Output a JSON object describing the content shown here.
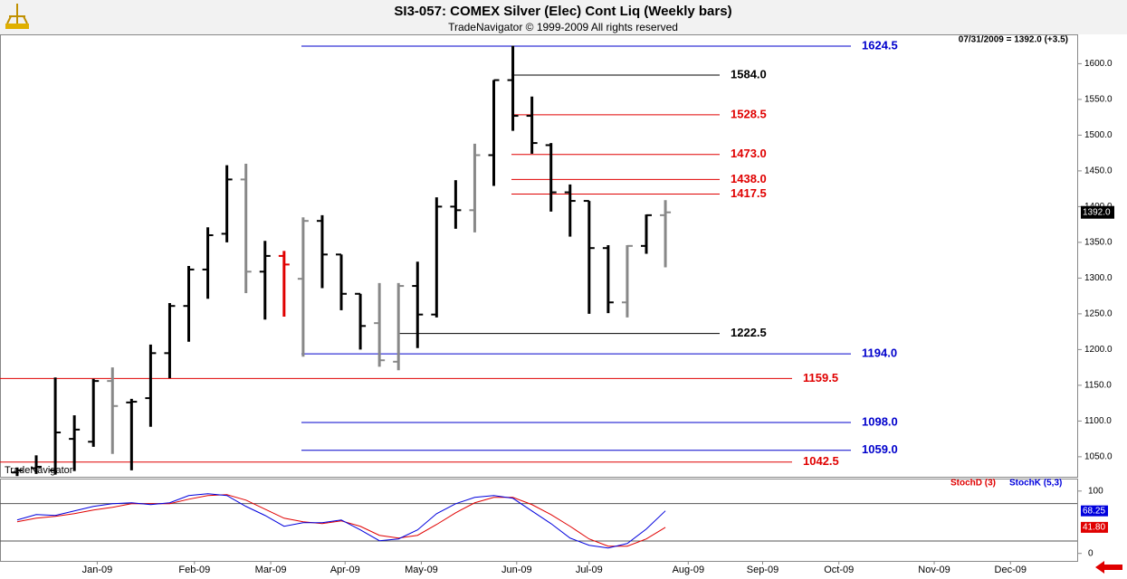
{
  "chart_data": [
    {
      "type": "ohlc",
      "title": "SI3-057:  COMEX Silver (Elec) Cont Liq  (Weekly bars)",
      "subtitle": "TradeNavigator © 1999-2009 All rights reserved",
      "watermark": "TradeNavigator",
      "info": "07/31/2009 = 1392.0 (+3.5)",
      "x": [
        0,
        1,
        2,
        3,
        4,
        5,
        6,
        7,
        8,
        9,
        10,
        11,
        12,
        13,
        14,
        15,
        16,
        17,
        18,
        19,
        20,
        21,
        22,
        23,
        24,
        25,
        26,
        27,
        28,
        29,
        30,
        31,
        32,
        33,
        34
      ],
      "xlim": [
        -0.9,
        55.6
      ],
      "ylim": [
        1022,
        1641
      ],
      "yticks": [
        {
          "value": 1050,
          "label": "1050.0"
        },
        {
          "value": 1100,
          "label": "1100.0"
        },
        {
          "value": 1150,
          "label": "1150.0"
        },
        {
          "value": 1200,
          "label": "1200.0"
        },
        {
          "value": 1250,
          "label": "1250.0"
        },
        {
          "value": 1300,
          "label": "1300.0"
        },
        {
          "value": 1350,
          "label": "1350.0"
        },
        {
          "value": 1400,
          "label": "1400.0"
        },
        {
          "value": 1450,
          "label": "1450.0"
        },
        {
          "value": 1500,
          "label": "1500.0"
        },
        {
          "value": 1550,
          "label": "1550.0"
        },
        {
          "value": 1600,
          "label": "1600.0"
        }
      ],
      "series": [
        {
          "open": [
            1028,
            1034,
            1031,
            1075,
            1071,
            1156,
            1126,
            1132,
            1195,
            1261,
            1312,
            1362,
            1438,
            1309,
            1331,
            1299,
            1380,
            1333,
            1278,
            1237,
            1183,
            1289,
            1249,
            1400,
            1395,
            1472,
            1577,
            1527,
            1486,
            1420,
            1408,
            1342,
            1266,
            1345,
            1388
          ],
          "high": [
            1035,
            1052,
            1161,
            1108,
            1159,
            1175,
            1131,
            1207,
            1265,
            1317,
            1371,
            1458,
            1460,
            1352,
            1338,
            1385,
            1388,
            1333,
            1278,
            1293,
            1293,
            1323,
            1413,
            1437,
            1488,
            1577,
            1625,
            1554,
            1489,
            1431,
            1408,
            1346,
            1346,
            1389,
            1409
          ],
          "low": [
            1023,
            1026,
            1025,
            1030,
            1064,
            1054,
            1031,
            1092,
            1160,
            1211,
            1271,
            1350,
            1279,
            1242,
            1246,
            1190,
            1286,
            1255,
            1200,
            1176,
            1171,
            1202,
            1245,
            1369,
            1364,
            1429,
            1506,
            1474,
            1393,
            1358,
            1250,
            1251,
            1245,
            1334,
            1315
          ],
          "close": [
            1031,
            1036,
            1084,
            1088,
            1156,
            1121,
            1127,
            1195,
            1261,
            1312,
            1360,
            1438,
            1309,
            1331,
            1319,
            1380,
            1333,
            1278,
            1233,
            1185,
            1289,
            1249,
            1400,
            1395,
            1472,
            1577,
            1527,
            1489,
            1420,
            1408,
            1342,
            1266,
            1345,
            1388,
            1392
          ],
          "colors": [
            "#000",
            "#000",
            "#000",
            "#000",
            "#000",
            "#888",
            "#000",
            "#000",
            "#000",
            "#000",
            "#000",
            "#000",
            "#888",
            "#000",
            "#e00000",
            "#888",
            "#000",
            "#000",
            "#000",
            "#888",
            "#888",
            "#000",
            "#000",
            "#000",
            "#888",
            "#000",
            "#000",
            "#000",
            "#000",
            "#000",
            "#000",
            "#000",
            "#888",
            "#000",
            "#888"
          ]
        }
      ],
      "last_price": {
        "value": 1392.0,
        "label": "1392.0"
      },
      "levels": [
        {
          "value": 1624.5,
          "label": "1624.5",
          "color": "#0000cc"
        },
        {
          "value": 1584.0,
          "label": "1584.0",
          "color": "#000000"
        },
        {
          "value": 1528.5,
          "label": "1528.5",
          "color": "#e00000"
        },
        {
          "value": 1473.0,
          "label": "1473.0",
          "color": "#e00000"
        },
        {
          "value": 1438.0,
          "label": "1438.0",
          "color": "#e00000"
        },
        {
          "value": 1417.5,
          "label": "1417.5",
          "color": "#e00000"
        },
        {
          "value": 1222.5,
          "label": "1222.5",
          "color": "#000000"
        },
        {
          "value": 1194.0,
          "label": "1194.0",
          "color": "#0000cc"
        },
        {
          "value": 1159.5,
          "label": "1159.5",
          "color": "#e00000"
        },
        {
          "value": 1098.0,
          "label": "1098.0",
          "color": "#0000cc"
        },
        {
          "value": 1059.0,
          "label": "1059.0",
          "color": "#0000cc"
        },
        {
          "value": 1042.5,
          "label": "1042.5",
          "color": "#e00000"
        }
      ]
    },
    {
      "type": "line",
      "x": [
        0,
        1,
        2,
        3,
        4,
        5,
        6,
        7,
        8,
        9,
        10,
        11,
        12,
        13,
        14,
        15,
        16,
        17,
        18,
        19,
        20,
        21,
        22,
        23,
        24,
        25,
        26,
        27,
        28,
        29,
        30,
        31,
        32,
        33,
        34
      ],
      "xlim": [
        -0.9,
        55.6
      ],
      "xticks": [
        {
          "value": 4.2,
          "label": "Jan-09"
        },
        {
          "value": 9.3,
          "label": "Feb-09"
        },
        {
          "value": 13.3,
          "label": "Mar-09"
        },
        {
          "value": 17.2,
          "label": "Apr-09"
        },
        {
          "value": 21.2,
          "label": "May-09"
        },
        {
          "value": 26.2,
          "label": "Jun-09"
        },
        {
          "value": 30,
          "label": "Jul-09"
        },
        {
          "value": 35.2,
          "label": "Aug-09"
        },
        {
          "value": 39.1,
          "label": "Sep-09"
        },
        {
          "value": 43.1,
          "label": "Oct-09"
        },
        {
          "value": 48.1,
          "label": "Nov-09"
        },
        {
          "value": 52.1,
          "label": "Dec-09"
        }
      ],
      "ylim": [
        -12,
        120
      ],
      "yticks": [
        0,
        100
      ],
      "reference_lines": [
        20,
        80
      ],
      "series": [
        {
          "name": "StochD (3)",
          "color": "#e00000",
          "last_label": "41.80",
          "values": [
            50.7,
            56.5,
            59.4,
            63.8,
            69.6,
            73.9,
            79.7,
            79.7,
            79.7,
            86.9,
            92.8,
            94.2,
            85.5,
            71,
            56.5,
            50.7,
            47.8,
            52.2,
            43.5,
            29,
            24.6,
            29,
            46.4,
            65.2,
            81.2,
            89.9,
            89.9,
            78.3,
            62.3,
            43.5,
            23.2,
            11.6,
            11.6,
            23.2,
            41.8
          ]
        },
        {
          "name": "StochK (5,3)",
          "color": "#0000dd",
          "last_label": "68.25",
          "values": [
            53.6,
            62.3,
            60.9,
            68.1,
            75.4,
            79.7,
            81.2,
            78.3,
            81.2,
            92.8,
            95.7,
            92.8,
            75.4,
            60.9,
            43.5,
            49.3,
            49.3,
            53.6,
            37.7,
            20.3,
            23.2,
            37.7,
            63.8,
            79.7,
            89.9,
            92.8,
            88.4,
            68.1,
            47.8,
            24.6,
            13,
            8.7,
            15.9,
            39.1,
            68.25
          ]
        }
      ]
    }
  ]
}
